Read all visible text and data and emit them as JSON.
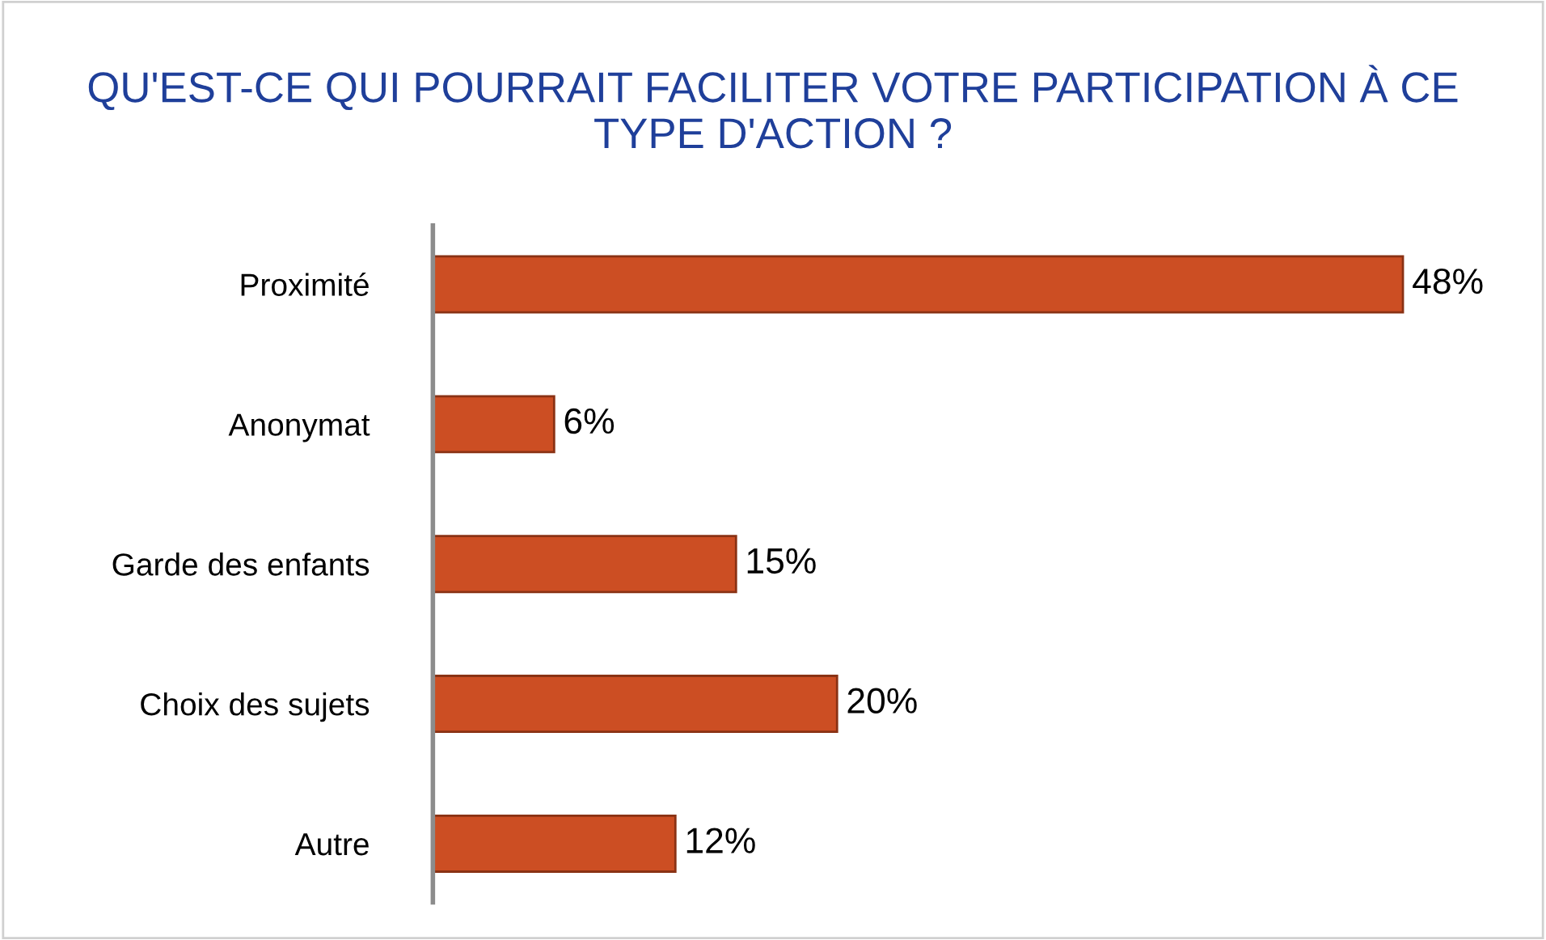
{
  "chart_data": {
    "type": "bar",
    "orientation": "horizontal",
    "title": "QU'EST-CE QUI POURRAIT FACILITER VOTRE PARTICIPATION À CE\nTYPE D'ACTION ?",
    "categories": [
      "Proximité",
      "Anonymat",
      "Garde des enfants",
      "Choix des sujets",
      "Autre"
    ],
    "values": [
      48,
      6,
      15,
      20,
      12
    ],
    "value_labels": [
      "48%",
      "6%",
      "15%",
      "20%",
      "12%"
    ],
    "color": "#cc4e23",
    "grid": false,
    "legend": false,
    "tick_labels": "y"
  }
}
